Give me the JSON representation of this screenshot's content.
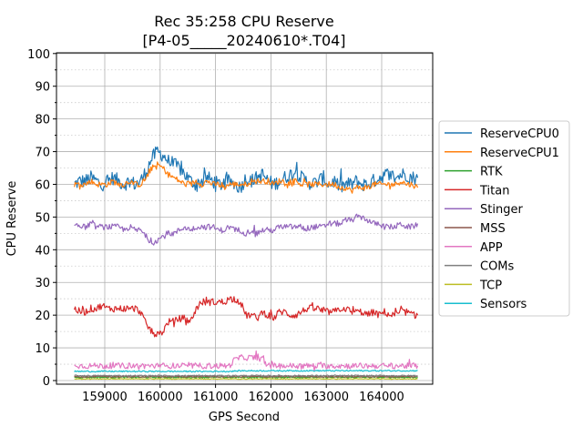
{
  "chart_data": {
    "type": "line",
    "title": "Rec 35:258 CPU Reserve",
    "subtitle": "[P4-05_____20240610*.T04]",
    "xlabel": "GPS Second",
    "ylabel": "CPU Reserve",
    "xlim": [
      158000,
      165000
    ],
    "ylim": [
      -1,
      100
    ],
    "xticks": [
      159000,
      160000,
      161000,
      162000,
      163000,
      164000
    ],
    "xtick_labels": [
      "159000",
      "160000",
      "161000",
      "162000",
      "163000",
      "164000"
    ],
    "yticks": [
      0,
      10,
      20,
      30,
      40,
      50,
      60,
      70,
      80,
      90,
      100
    ],
    "ytick_labels": [
      "0",
      "10",
      "20",
      "30",
      "40",
      "50",
      "60",
      "70",
      "80",
      "90",
      "100"
    ],
    "grid": "major solid, minor dotted",
    "legend_position": "right",
    "x_start": 158450,
    "x_step": 100,
    "series": [
      {
        "name": "ReserveCPU0",
        "color": "#1f77b4",
        "noise": 2.2,
        "values": [
          60,
          61,
          61,
          62,
          61,
          60,
          61,
          62,
          61,
          60,
          61,
          60,
          61,
          64,
          68,
          70,
          69,
          67,
          66,
          65,
          63,
          61,
          60,
          61,
          62,
          61,
          60,
          60,
          61,
          60,
          59,
          62,
          61,
          62,
          63,
          61,
          60,
          61,
          62,
          63,
          64,
          62,
          61,
          60,
          61,
          62,
          60,
          61,
          59,
          60,
          60,
          61,
          60,
          60,
          61,
          62,
          63,
          63,
          62,
          63,
          63,
          62,
          62
        ]
      },
      {
        "name": "ReserveCPU1",
        "color": "#ff7f0e",
        "noise": 0.9,
        "values": [
          60,
          60,
          60,
          61,
          60,
          60,
          60,
          61,
          60,
          60,
          61,
          60,
          60,
          62,
          65,
          66,
          65,
          63,
          62,
          61,
          60,
          60,
          61,
          60,
          61,
          60,
          60,
          59,
          60,
          60,
          60,
          60,
          61,
          61,
          61,
          61,
          60,
          61,
          61,
          60,
          61,
          60,
          60,
          60,
          60,
          60,
          60,
          60,
          59,
          59,
          58,
          59,
          59,
          59,
          60,
          60,
          60,
          60,
          60,
          61,
          60,
          60,
          59
        ]
      },
      {
        "name": "RTK",
        "color": "#2ca02c",
        "noise": 0.2,
        "values": [
          1,
          1,
          1,
          1,
          1,
          1,
          1,
          1,
          1,
          1,
          1,
          1,
          1,
          1,
          1,
          1,
          1,
          1,
          1,
          1,
          1,
          1,
          1,
          1,
          1,
          1,
          1,
          1,
          1,
          1,
          1,
          1,
          1,
          1,
          1,
          1,
          1,
          1,
          1,
          1,
          1,
          1,
          1,
          1,
          1,
          1,
          1,
          1,
          1,
          1,
          1,
          1,
          1,
          1,
          1,
          1,
          1,
          1,
          1,
          1,
          1,
          1,
          1
        ]
      },
      {
        "name": "Titan",
        "color": "#d62728",
        "noise": 1.1,
        "values": [
          22,
          21,
          21,
          22,
          22,
          23,
          22,
          22,
          22,
          22,
          22,
          22,
          21,
          17,
          15,
          14,
          15,
          18,
          18,
          19,
          19,
          18,
          22,
          24,
          24,
          24,
          24,
          24,
          25,
          25,
          24,
          20,
          20,
          19,
          21,
          20,
          19,
          21,
          21,
          20,
          20,
          21,
          22,
          22,
          22,
          21,
          21,
          21,
          22,
          22,
          21,
          21,
          21,
          20,
          21,
          20,
          21,
          20,
          20,
          21,
          21,
          20,
          20
        ]
      },
      {
        "name": "Stinger",
        "color": "#9467bd",
        "noise": 0.9,
        "values": [
          48,
          47,
          47,
          48,
          47,
          47,
          47,
          47,
          47,
          46,
          47,
          46,
          46,
          44,
          42,
          43,
          44,
          45,
          45,
          46,
          47,
          46,
          47,
          47,
          47,
          47,
          46,
          46,
          47,
          46,
          46,
          45,
          46,
          45,
          46,
          46,
          46,
          47,
          47,
          47,
          47,
          47,
          46,
          47,
          47,
          47,
          48,
          48,
          48,
          49,
          49,
          50,
          50,
          49,
          48,
          48,
          47,
          47,
          47,
          48,
          47,
          47,
          48
        ]
      },
      {
        "name": "MSS",
        "color": "#8c564b",
        "noise": 0.2,
        "values": [
          1.2,
          1.2,
          1.2,
          1.2,
          1.2,
          1.2,
          1.2,
          1.2,
          1.2,
          1.2,
          1.2,
          1.2,
          1.2,
          1.2,
          1.2,
          1.2,
          1.2,
          1.2,
          1.2,
          1.2,
          1.2,
          1.2,
          1.2,
          1.2,
          1.2,
          1.2,
          1.2,
          1.2,
          1.2,
          1.2,
          1.2,
          1.2,
          1.2,
          1.2,
          1.2,
          1.2,
          1.2,
          1.2,
          1.2,
          1.2,
          1.2,
          1.2,
          1.2,
          1.2,
          1.2,
          1.2,
          1.2,
          1.2,
          1.2,
          1.2,
          1.2,
          1.2,
          1.2,
          1.2,
          1.2,
          1.2,
          1.2,
          1.2,
          1.2,
          1.2,
          1.2,
          1.2,
          1.2
        ]
      },
      {
        "name": "APP",
        "color": "#e377c2",
        "noise": 0.9,
        "values": [
          4.5,
          4.5,
          4.5,
          4.5,
          4.5,
          4.5,
          4.5,
          4.5,
          4.5,
          4.5,
          4.5,
          4.5,
          4.5,
          4.5,
          4.5,
          4.5,
          4.5,
          4.5,
          4.5,
          4.5,
          4.5,
          4.5,
          4.5,
          4.5,
          4.5,
          4.5,
          4.5,
          4.5,
          4.5,
          6.5,
          7,
          7,
          7,
          7,
          6.5,
          4.5,
          4.5,
          4.5,
          4.5,
          4.5,
          4.5,
          4.5,
          4.5,
          4.5,
          4.5,
          4.5,
          4.5,
          4.5,
          4.5,
          4.5,
          4.5,
          4.5,
          4.5,
          4.5,
          4.5,
          4.5,
          4.5,
          4.5,
          4.5,
          4.5,
          4.5,
          4.5,
          4.5
        ]
      },
      {
        "name": "COMs",
        "color": "#7f7f7f",
        "noise": 0.2,
        "values": [
          1.5,
          1.5,
          1.5,
          1.5,
          1.5,
          1.5,
          1.5,
          1.5,
          1.5,
          1.5,
          1.5,
          1.5,
          1.5,
          1.5,
          1.5,
          1.5,
          1.5,
          1.5,
          1.5,
          1.5,
          1.5,
          1.5,
          1.5,
          1.5,
          1.5,
          1.5,
          1.5,
          1.5,
          1.5,
          1.5,
          1.5,
          1.5,
          1.5,
          1.5,
          1.5,
          1.5,
          1.5,
          1.5,
          1.5,
          1.5,
          1.5,
          1.5,
          1.5,
          1.5,
          1.5,
          1.5,
          1.5,
          1.5,
          1.5,
          1.5,
          1.5,
          1.5,
          1.5,
          1.5,
          1.5,
          1.5,
          1.5,
          1.5,
          1.5,
          1.5,
          1.5,
          1.5,
          1.5
        ]
      },
      {
        "name": "TCP",
        "color": "#bcbd22",
        "noise": 0.1,
        "values": [
          0.5,
          0.5,
          0.5,
          0.5,
          0.5,
          0.5,
          0.5,
          0.5,
          0.5,
          0.5,
          0.5,
          0.5,
          0.5,
          0.5,
          0.5,
          0.5,
          0.5,
          0.5,
          0.5,
          0.5,
          0.5,
          0.5,
          0.5,
          0.5,
          0.5,
          0.5,
          0.5,
          0.5,
          0.5,
          0.5,
          0.5,
          0.5,
          0.5,
          0.5,
          0.5,
          0.5,
          0.5,
          0.5,
          0.5,
          0.5,
          0.5,
          0.5,
          0.5,
          0.5,
          0.5,
          0.5,
          0.5,
          0.5,
          0.5,
          0.5,
          0.5,
          0.5,
          0.5,
          0.5,
          0.5,
          0.5,
          0.5,
          0.5,
          0.5,
          0.5,
          0.5,
          0.5,
          0.5
        ]
      },
      {
        "name": "Sensors",
        "color": "#17becf",
        "noise": 0.2,
        "values": [
          2.8,
          2.8,
          2.8,
          2.8,
          2.8,
          2.8,
          2.8,
          2.8,
          2.8,
          2.8,
          2.8,
          2.8,
          2.8,
          2.8,
          2.8,
          2.8,
          2.8,
          2.8,
          2.8,
          2.8,
          2.8,
          2.8,
          2.8,
          2.8,
          2.8,
          2.8,
          2.8,
          2.8,
          2.8,
          2.9,
          3,
          3,
          3,
          3,
          3,
          3,
          3,
          3,
          3,
          3,
          3,
          3,
          3,
          3,
          3,
          3,
          3,
          3,
          3,
          3,
          3,
          3,
          3,
          3,
          3,
          3,
          3,
          3,
          3,
          3,
          3,
          3,
          3
        ]
      }
    ]
  }
}
